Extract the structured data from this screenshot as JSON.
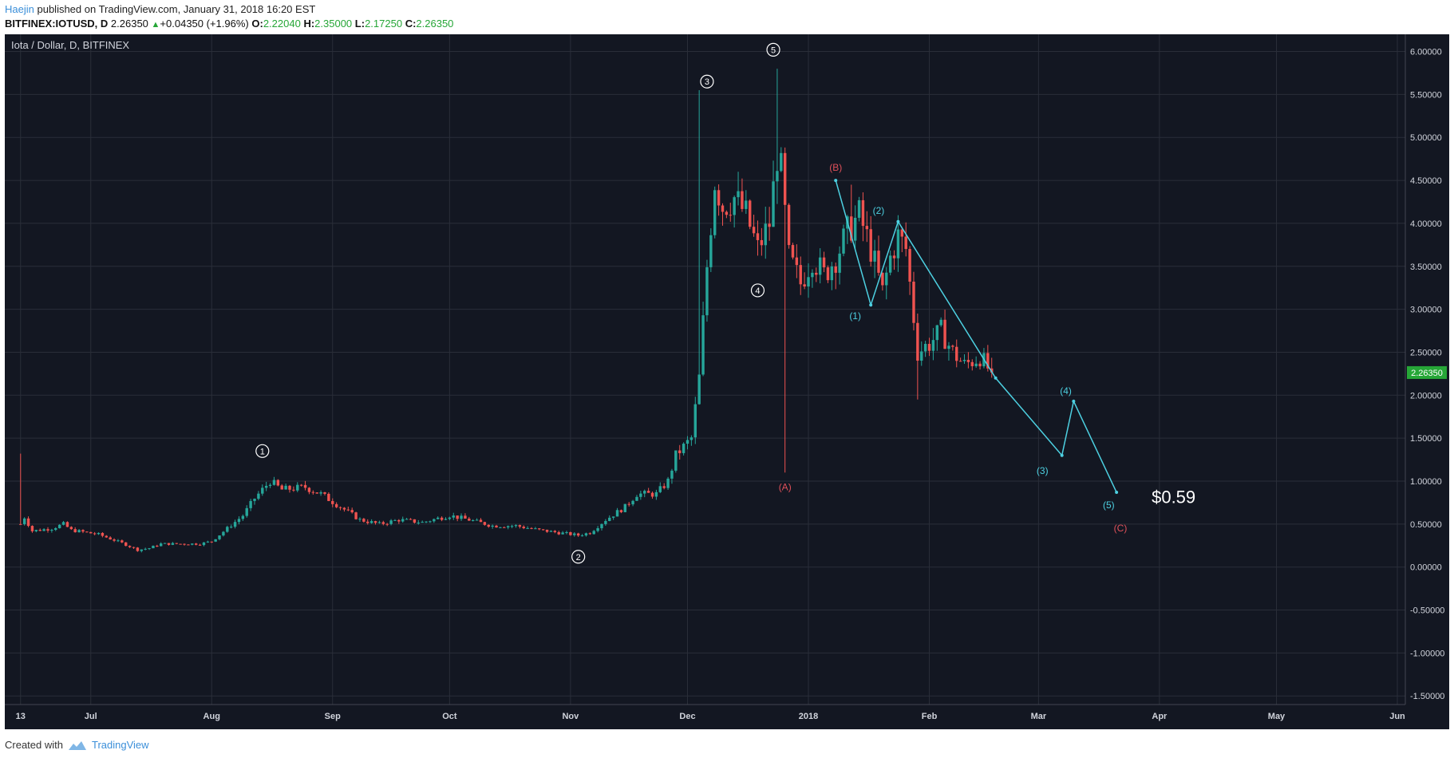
{
  "header": {
    "author": "Haejin",
    "published_text": "published on TradingView.com, January 31, 2018 16:20 EST",
    "symbol": "BITFINEX:IOTUSD, D",
    "last": "2.26350",
    "change": "+0.04350 (+1.96%)",
    "open_label": "O:",
    "open": "2.22040",
    "high_label": "H:",
    "high": "2.35000",
    "low_label": "L:",
    "low": "2.17250",
    "close_label": "C:",
    "close": "2.26350"
  },
  "footer": {
    "created_with": "Created with",
    "brand": "TradingView"
  },
  "colors": {
    "background": "#131722",
    "grid": "#2a2e39",
    "axis_text": "#d1d4dc",
    "up": "#26a69a",
    "down": "#ef5350",
    "wave": "#4dd0e1",
    "correction": "#e0505a",
    "price_tag": "#26a637"
  },
  "chart_data": {
    "type": "candlestick",
    "title": "Iota / Dollar, D, BITFINEX",
    "ylim": [
      -1.6,
      6.2
    ],
    "y_ticks": [
      "6.00000",
      "5.50000",
      "5.00000",
      "4.50000",
      "4.00000",
      "3.50000",
      "3.00000",
      "2.50000",
      "2.00000",
      "1.50000",
      "1.00000",
      "0.50000",
      "0.00000",
      "-0.50000",
      "-1.00000",
      "-1.50000"
    ],
    "y_tick_values": [
      6,
      5.5,
      5,
      4.5,
      4,
      3.5,
      3,
      2.5,
      2,
      1.5,
      1,
      0.5,
      0,
      -0.5,
      -1,
      -1.5
    ],
    "x_range_days": [
      -2,
      353
    ],
    "x_ticks": [
      {
        "label": "13",
        "day": 0
      },
      {
        "label": "Jul",
        "day": 18
      },
      {
        "label": "Aug",
        "day": 49
      },
      {
        "label": "Sep",
        "day": 80
      },
      {
        "label": "Oct",
        "day": 110
      },
      {
        "label": "Nov",
        "day": 141
      },
      {
        "label": "Dec",
        "day": 171
      },
      {
        "label": "2018",
        "day": 202
      },
      {
        "label": "Feb",
        "day": 233
      },
      {
        "label": "Mar",
        "day": 261
      },
      {
        "label": "Apr",
        "day": 292
      },
      {
        "label": "May",
        "day": 322
      },
      {
        "label": "Jun",
        "day": 353
      }
    ],
    "current_price_label": "2.26350",
    "current_price": 2.2635,
    "price_anchors": [
      [
        0,
        0.5
      ],
      [
        1,
        0.58
      ],
      [
        3,
        0.42
      ],
      [
        8,
        0.45
      ],
      [
        11,
        0.5
      ],
      [
        13,
        0.43
      ],
      [
        20,
        0.38
      ],
      [
        26,
        0.28
      ],
      [
        30,
        0.2
      ],
      [
        33,
        0.22
      ],
      [
        36,
        0.27
      ],
      [
        46,
        0.27
      ],
      [
        49,
        0.3
      ],
      [
        53,
        0.45
      ],
      [
        57,
        0.6
      ],
      [
        60,
        0.8
      ],
      [
        64,
        1.0
      ],
      [
        67,
        0.9
      ],
      [
        73,
        0.93
      ],
      [
        77,
        0.85
      ],
      [
        82,
        0.7
      ],
      [
        87,
        0.55
      ],
      [
        92,
        0.5
      ],
      [
        97,
        0.55
      ],
      [
        103,
        0.52
      ],
      [
        110,
        0.6
      ],
      [
        115,
        0.55
      ],
      [
        121,
        0.48
      ],
      [
        127,
        0.48
      ],
      [
        133,
        0.43
      ],
      [
        138,
        0.4
      ],
      [
        143,
        0.37
      ],
      [
        146,
        0.4
      ],
      [
        150,
        0.55
      ],
      [
        155,
        0.7
      ],
      [
        158,
        0.85
      ],
      [
        163,
        0.85
      ],
      [
        166,
        1.0
      ],
      [
        168,
        1.3
      ],
      [
        172,
        1.5
      ],
      [
        174,
        2.2
      ],
      [
        176,
        3.5
      ],
      [
        178,
        4.5
      ],
      [
        180,
        4.2
      ],
      [
        183,
        4.3
      ],
      [
        186,
        4.1
      ],
      [
        189,
        3.7
      ],
      [
        192,
        4.0
      ],
      [
        194,
        4.8
      ],
      [
        195,
        4.6
      ],
      [
        197,
        3.6
      ],
      [
        200,
        3.3
      ],
      [
        203,
        3.6
      ],
      [
        206,
        3.4
      ],
      [
        209,
        3.6
      ],
      [
        212,
        3.9
      ],
      [
        215,
        4.1
      ],
      [
        218,
        3.7
      ],
      [
        221,
        3.2
      ],
      [
        223,
        3.6
      ],
      [
        225,
        3.85
      ],
      [
        227,
        3.7
      ],
      [
        230,
        2.5
      ],
      [
        233,
        2.6
      ],
      [
        236,
        2.75
      ],
      [
        239,
        2.5
      ],
      [
        242,
        2.35
      ],
      [
        246,
        2.45
      ],
      [
        249,
        2.25
      ]
    ],
    "wave_path": [
      [
        209,
        4.5
      ],
      [
        218,
        3.05
      ],
      [
        225,
        4.02
      ],
      [
        250,
        2.2
      ],
      [
        267,
        1.3
      ],
      [
        270,
        1.93
      ],
      [
        281,
        0.87
      ]
    ],
    "labels": [
      {
        "text": "1",
        "day": 62,
        "y": 1.35,
        "style": "circle"
      },
      {
        "text": "2",
        "day": 143,
        "y": 0.12,
        "style": "circle"
      },
      {
        "text": "3",
        "day": 176,
        "y": 5.65,
        "style": "circle"
      },
      {
        "text": "4",
        "day": 189,
        "y": 3.22,
        "style": "circle"
      },
      {
        "text": "5",
        "day": 193,
        "y": 6.02,
        "style": "circle"
      },
      {
        "text": "(A)",
        "day": 196,
        "y": 0.93,
        "style": "red"
      },
      {
        "text": "(B)",
        "day": 209,
        "y": 4.65,
        "style": "red"
      },
      {
        "text": "(C)",
        "day": 282,
        "y": 0.45,
        "style": "red"
      },
      {
        "text": "(1)",
        "day": 214,
        "y": 2.92,
        "style": "cyan"
      },
      {
        "text": "(2)",
        "day": 220,
        "y": 4.15,
        "style": "cyan"
      },
      {
        "text": "(3)",
        "day": 262,
        "y": 1.12,
        "style": "cyan"
      },
      {
        "text": "(4)",
        "day": 268,
        "y": 2.05,
        "style": "cyan"
      },
      {
        "text": "(5)",
        "day": 279,
        "y": 0.72,
        "style": "cyan"
      },
      {
        "text": "$0.59",
        "day": 290,
        "y": 0.82,
        "style": "big"
      }
    ]
  }
}
